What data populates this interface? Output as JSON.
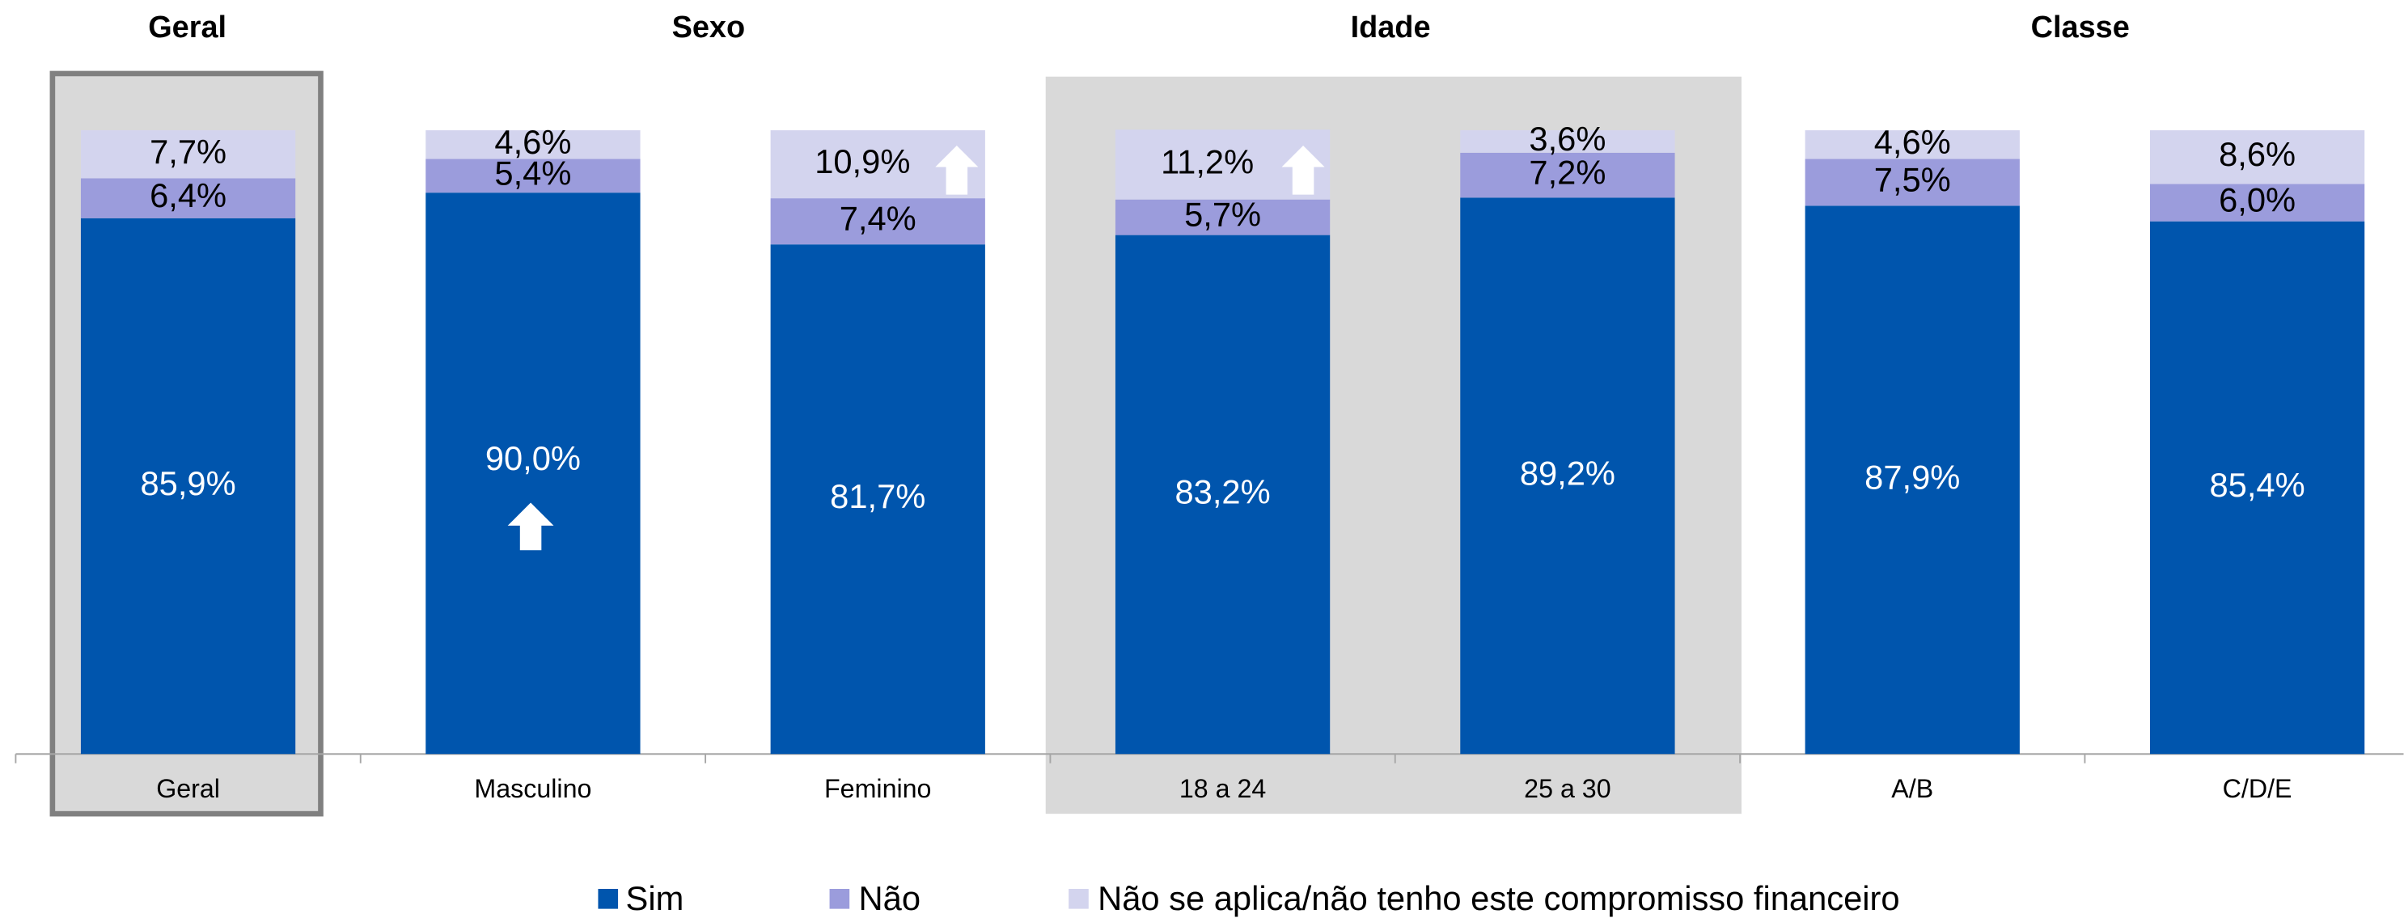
{
  "chart_data": {
    "type": "stacked_bar",
    "group_titles": [
      "Geral",
      "Sexo",
      "Idade",
      "Classe"
    ],
    "categories": [
      "Geral",
      "Masculino",
      "Feminino",
      "18 a 24",
      "25 a 30",
      "A/B",
      "C/D/E"
    ],
    "series": [
      {
        "name": "Sim",
        "color": "#0055ad",
        "values": [
          85.9,
          90.0,
          81.7,
          83.2,
          89.2,
          87.9,
          85.4
        ],
        "value_labels": [
          "85,9%",
          "90,0%",
          "81,7%",
          "83,2%",
          "89,2%",
          "87,9%",
          "85,4%"
        ]
      },
      {
        "name": "Não",
        "color": "#9b9cdc",
        "values": [
          6.4,
          5.4,
          7.4,
          5.7,
          7.2,
          7.5,
          6.0
        ],
        "value_labels": [
          "6,4%",
          "5,4%",
          "7,4%",
          "5,7%",
          "7,2%",
          "7,5%",
          "6,0%"
        ]
      },
      {
        "name": "Não se aplica/não tenho este compromisso financeiro",
        "color": "#d3d4ee",
        "values": [
          7.7,
          4.6,
          10.9,
          11.2,
          3.6,
          4.6,
          8.6
        ],
        "value_labels": [
          "7,7%",
          "4,6%",
          "10,9%",
          "11,2%",
          "3,6%",
          "4,6%",
          "8,6%"
        ]
      }
    ],
    "ylim": [
      0,
      100
    ],
    "legend": "bottom"
  }
}
